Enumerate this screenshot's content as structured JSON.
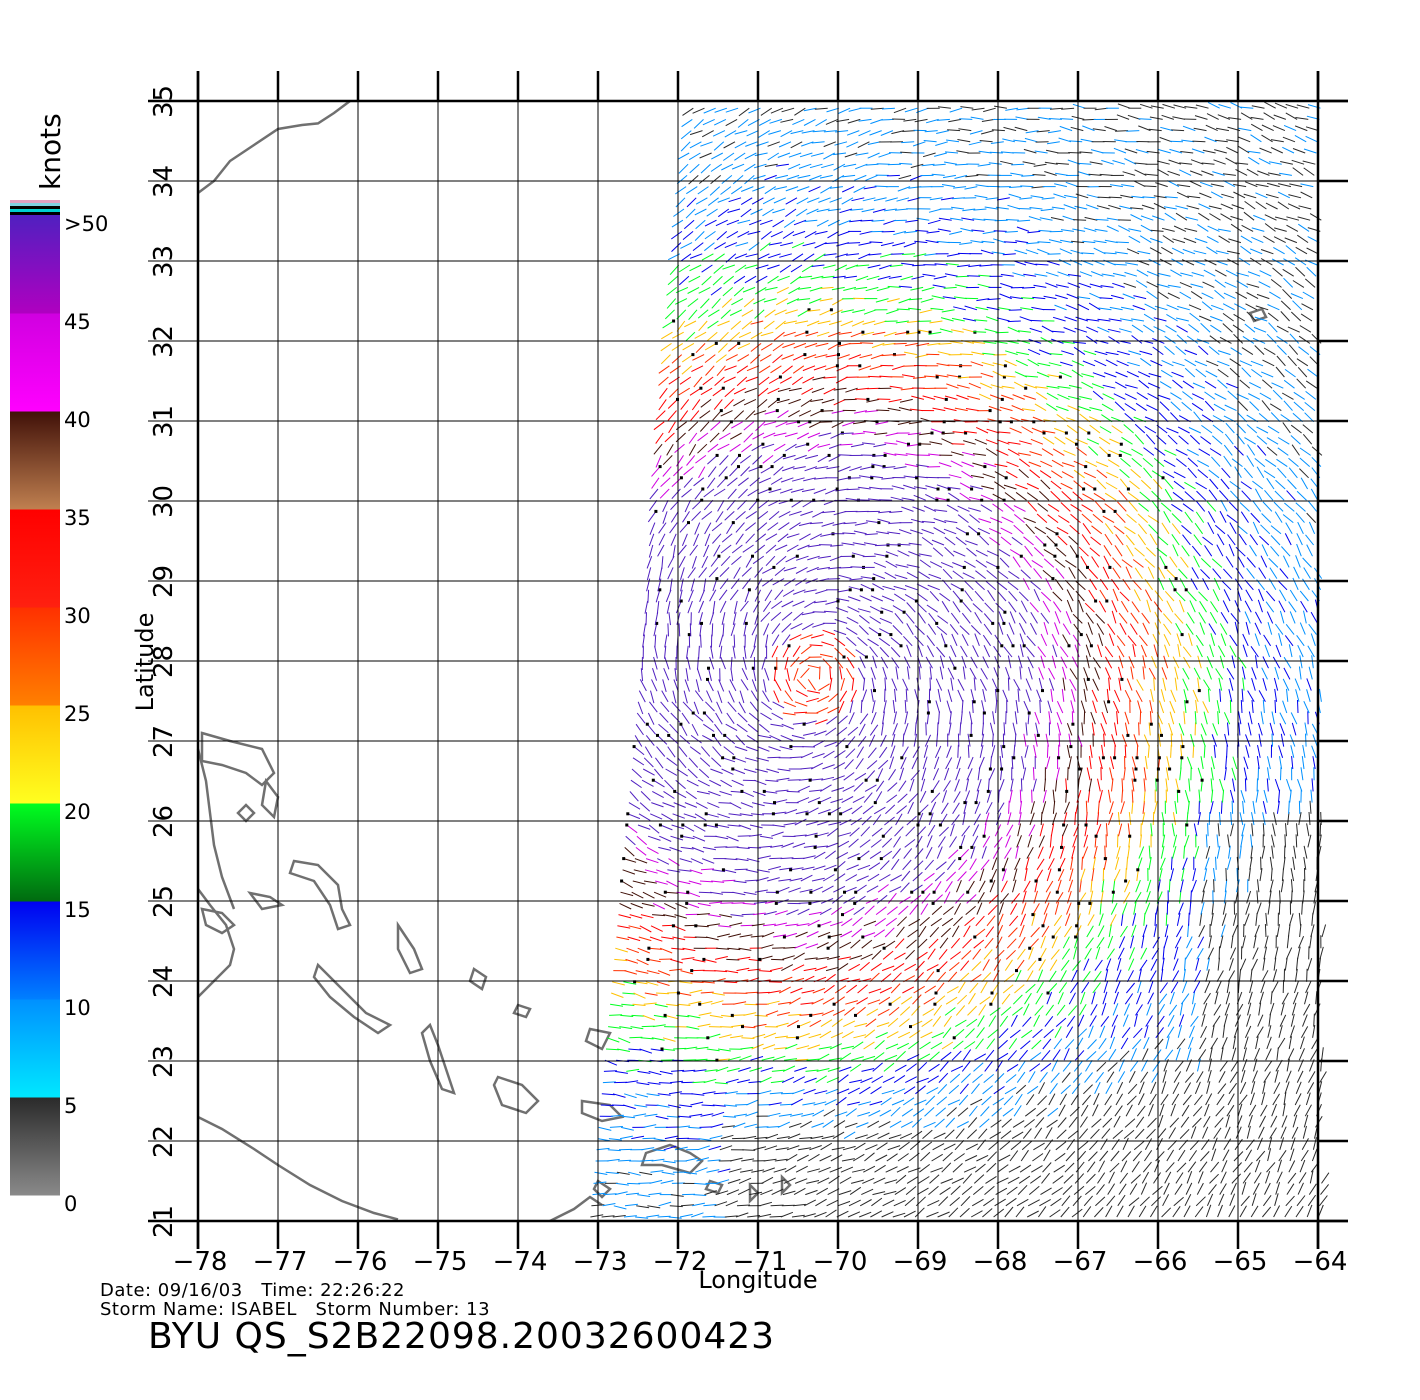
{
  "legend": {
    "unit_label": "knots",
    "ticks": [
      ">50",
      "45",
      "40",
      "35",
      "30",
      "25",
      "20",
      "15",
      "10",
      "5",
      "0"
    ],
    "bands": [
      {
        "from": 0,
        "to": 5,
        "colors": [
          "#8a8a8a",
          "#2a2a2a"
        ]
      },
      {
        "from": 5,
        "to": 10,
        "colors": [
          "#00e8ff",
          "#0090ff"
        ]
      },
      {
        "from": 10,
        "to": 15,
        "colors": [
          "#0080ff",
          "#0000f0"
        ]
      },
      {
        "from": 15,
        "to": 20,
        "colors": [
          "#006a10",
          "#00ff20"
        ]
      },
      {
        "from": 20,
        "to": 25,
        "colors": [
          "#ffff20",
          "#ffc000"
        ]
      },
      {
        "from": 25,
        "to": 30,
        "colors": [
          "#ff8000",
          "#ff3000"
        ]
      },
      {
        "from": 30,
        "to": 35,
        "colors": [
          "#ff2010",
          "#ff0000"
        ]
      },
      {
        "from": 35,
        "to": 40,
        "colors": [
          "#c08050",
          "#401008"
        ]
      },
      {
        "from": 40,
        "to": 45,
        "colors": [
          "#ff00ff",
          "#d000e0"
        ]
      },
      {
        "from": 45,
        "to": 50,
        "colors": [
          "#b000c0",
          "#5020c0"
        ]
      }
    ],
    "top_stripes": [
      "#e0a0c0",
      "#80d0e0",
      "#000000",
      "#00d0d0",
      "#000000"
    ]
  },
  "axes": {
    "xlabel": "Longitude",
    "ylabel": "Latitude",
    "x_ticks": [
      "−78",
      "−77",
      "−76",
      "−75",
      "−74",
      "−73",
      "−72",
      "−71",
      "−70",
      "−69",
      "−68",
      "−67",
      "−66",
      "−65",
      "−64"
    ],
    "y_ticks": [
      "21",
      "22",
      "23",
      "24",
      "25",
      "26",
      "27",
      "28",
      "29",
      "30",
      "31",
      "32",
      "33",
      "34",
      "35"
    ],
    "lon_range": [
      -78,
      -64
    ],
    "lat_range": [
      21,
      35
    ]
  },
  "footer": {
    "date_line": "Date: 09/16/03   Time: 22:26:22",
    "storm_line": "Storm Name: ISABEL   Storm Number: 13",
    "product_id": "BYU  QS_S2B22098.20032600423"
  },
  "map_features": {
    "storm_center_lon": -70.3,
    "storm_center_lat": 27.8,
    "swath_west_edge": [
      [
        -73.1,
        21.0
      ],
      [
        -71.8,
        35.0
      ]
    ],
    "coast_color": "#707070",
    "grid_color": "#000000"
  }
}
